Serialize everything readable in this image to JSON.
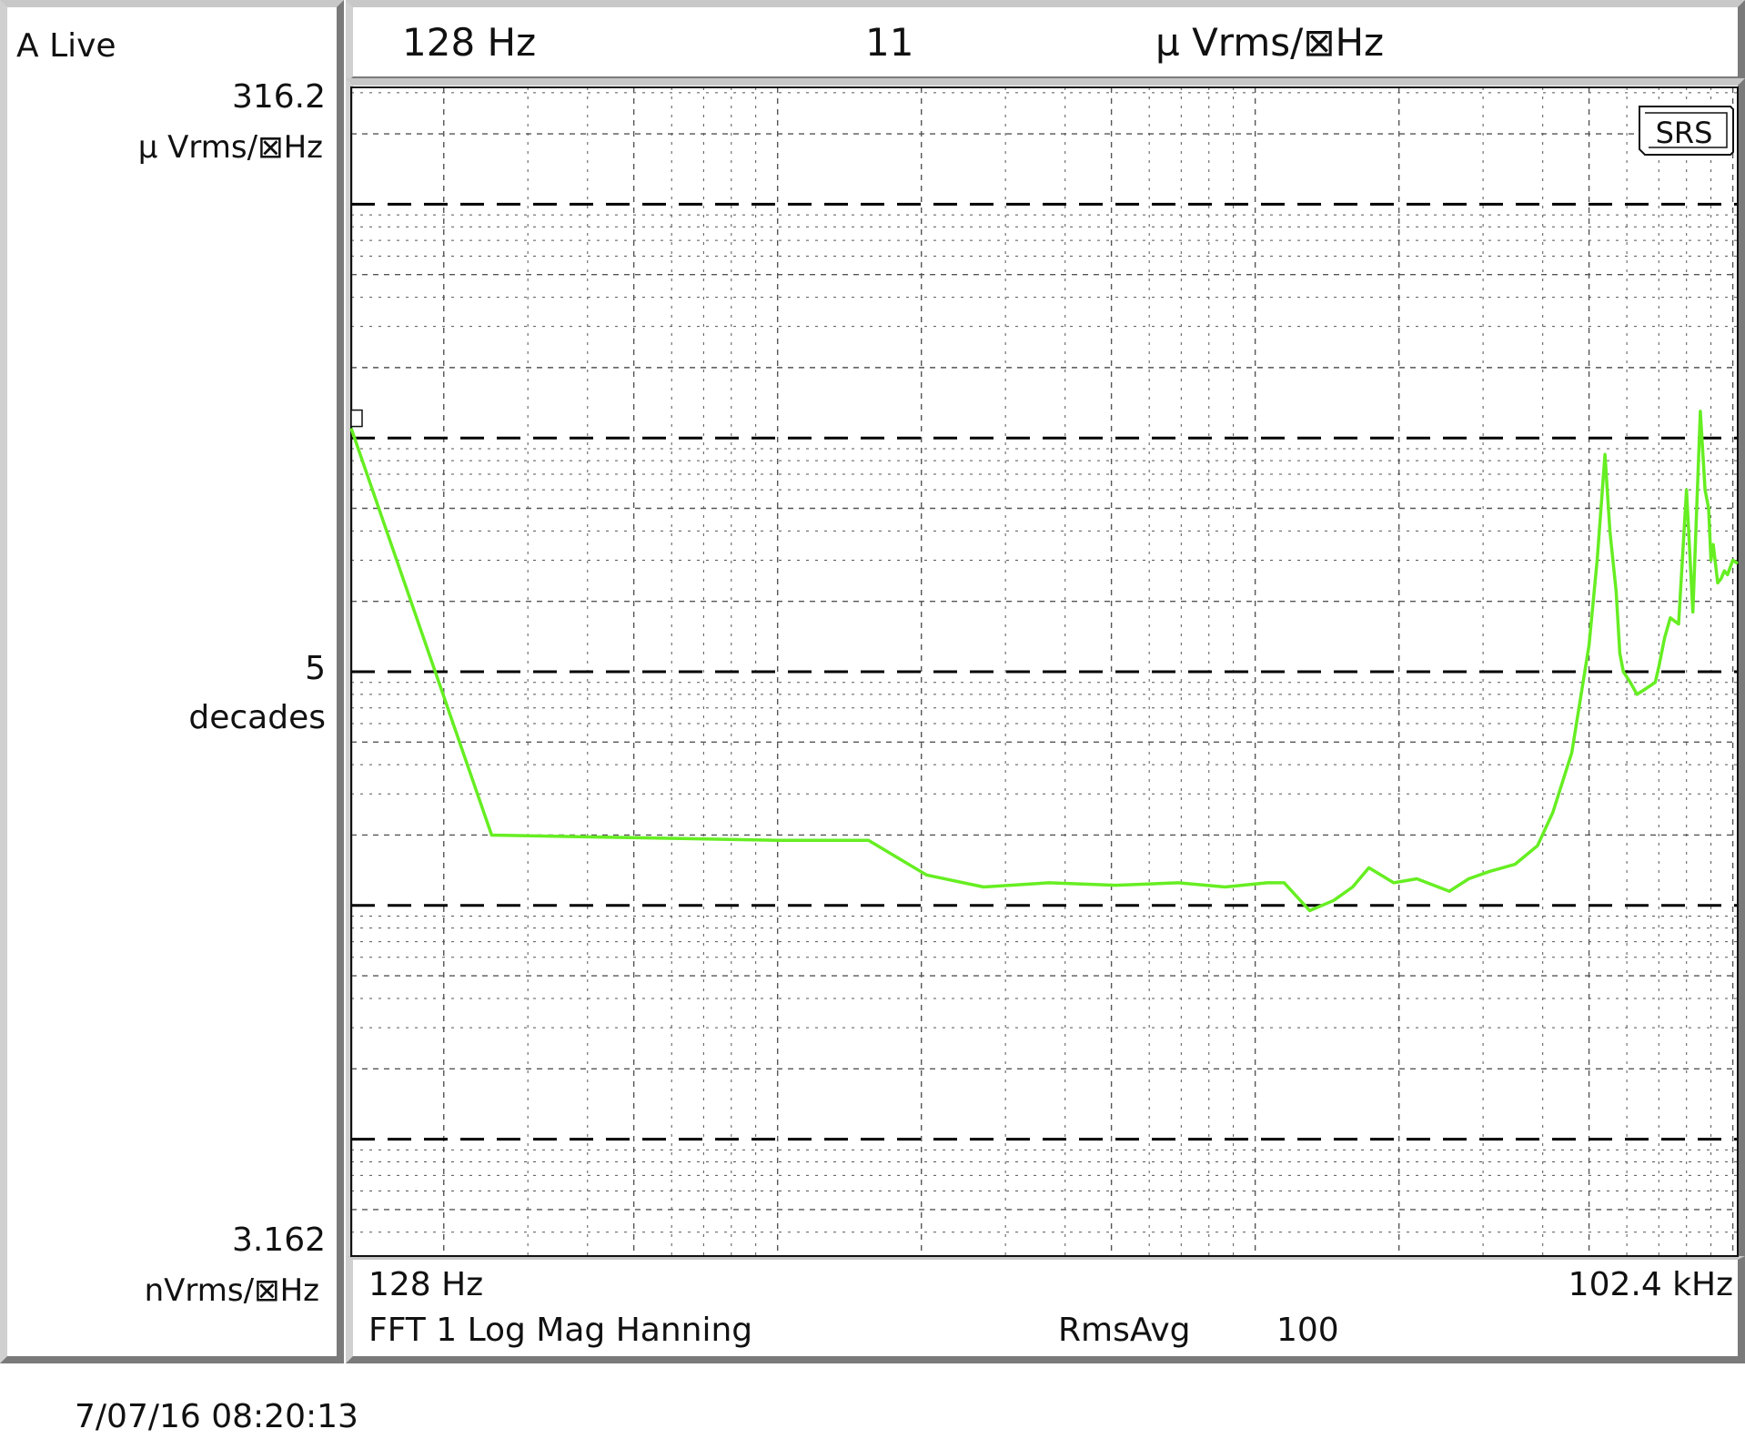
{
  "left": {
    "trace_label": "A Live",
    "top_value": "316.2",
    "top_unit": "µ Vrms/⊠Hz",
    "mid_value": "5",
    "mid_unit": "decades",
    "bottom_value": "3.162",
    "bottom_unit": "nVrms/⊠Hz"
  },
  "header": {
    "marker_freq": "128 Hz",
    "marker_value": "11",
    "marker_unit": "µ Vrms/⊠Hz"
  },
  "footer": {
    "start_freq": "128 Hz",
    "end_freq": "102.4 kHz",
    "measurement": "FFT 1 Log Mag Hanning",
    "avg_label": "RmsAvg",
    "avg_count": "100"
  },
  "badge": "SRS",
  "timestamp": "7/07/16  08:20:13",
  "colors": {
    "trace": "#66ee22",
    "grid": "#555555",
    "decade_line": "#000000",
    "bevel_light": "#d0d0d0",
    "bevel_dark": "#7a7a7a"
  },
  "chart_data": {
    "type": "line",
    "x_scale": "log",
    "y_scale": "log",
    "xlim": [
      128,
      102400
    ],
    "ylim": [
      3.162e-09,
      0.0003162
    ],
    "series": [
      {
        "x": [
          128,
          252,
          1000,
          1550,
          2050,
          2700,
          3700,
          5100,
          6900,
          8650,
          10600,
          11500,
          13000,
          14600,
          16000,
          17300,
          19500,
          21800,
          25500,
          28000,
          31000,
          35000,
          39000,
          42000,
          46000,
          50000,
          52000,
          54000,
          55300,
          57000,
          58000,
          59000,
          61000,
          63000,
          66000,
          68800,
          70000,
          72000,
          74000,
          77000,
          80000,
          82500,
          85500,
          87500,
          89000,
          90000,
          91000,
          93000,
          94500,
          96000,
          97500,
          100000,
          102400
        ],
        "y": [
          1.1e-05,
          2e-07,
          1.9e-07,
          1.9e-07,
          1.35e-07,
          1.2e-07,
          1.25e-07,
          1.22e-07,
          1.25e-07,
          1.2e-07,
          1.25e-07,
          1.25e-07,
          9.5e-08,
          1.05e-07,
          1.2e-07,
          1.45e-07,
          1.25e-07,
          1.3e-07,
          1.15e-07,
          1.3e-07,
          1.4e-07,
          1.5e-07,
          1.8e-07,
          2.5e-07,
          4.5e-07,
          1.3e-06,
          3e-06,
          8.5e-06,
          4e-06,
          2.2e-06,
          1.2e-06,
          1e-06,
          9e-07,
          8e-07,
          8.5e-07,
          9e-07,
          1.05e-06,
          1.4e-06,
          1.7e-06,
          1.6e-06,
          6e-06,
          1.8e-06,
          1.3e-05,
          6e-06,
          5e-06,
          3e-06,
          3.5e-06,
          2.4e-06,
          2.5e-06,
          2.7e-06,
          2.6e-06,
          3e-06,
          2.9e-06
        ]
      }
    ]
  }
}
